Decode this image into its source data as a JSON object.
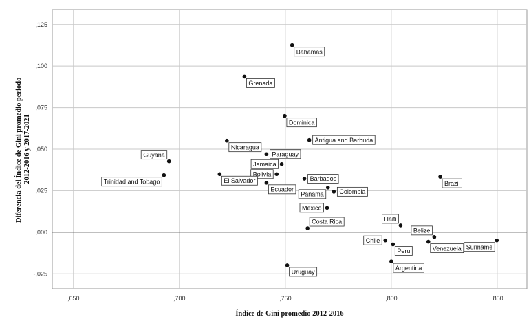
{
  "chart_data": {
    "type": "scatter",
    "xlabel": "Índice de Gini promedio 2012-2016",
    "ylabel_lines": [
      "Diferencia del Índice de Gini promedio periodo",
      "2012-2016 y 2017-2021"
    ],
    "xlim": [
      0.64,
      0.864
    ],
    "ylim": [
      -0.034,
      0.134
    ],
    "xticks": [
      {
        "value": 0.65,
        "label": ",650"
      },
      {
        "value": 0.7,
        "label": ",700"
      },
      {
        "value": 0.75,
        "label": ",750"
      },
      {
        "value": 0.8,
        "label": ",800"
      },
      {
        "value": 0.85,
        "label": ",850"
      }
    ],
    "yticks": [
      {
        "value": -0.025,
        "label": "-,025"
      },
      {
        "value": 0.0,
        "label": ",000"
      },
      {
        "value": 0.025,
        "label": ",025"
      },
      {
        "value": 0.05,
        "label": ",050"
      },
      {
        "value": 0.075,
        "label": ",075"
      },
      {
        "value": 0.1,
        "label": ",100"
      },
      {
        "value": 0.125,
        "label": ",125"
      }
    ],
    "grid": true,
    "reference_line_y": 0,
    "points": [
      {
        "name": "Bahamas",
        "x": 0.7532,
        "y": 0.1126,
        "pos": "right-below"
      },
      {
        "name": "Grenada",
        "x": 0.7307,
        "y": 0.0937,
        "pos": "right-below"
      },
      {
        "name": "Dominica",
        "x": 0.7497,
        "y": 0.07,
        "pos": "right-below"
      },
      {
        "name": "Antigua and Barbuda",
        "x": 0.7613,
        "y": 0.0555,
        "pos": "right"
      },
      {
        "name": "Nicaragua",
        "x": 0.7224,
        "y": 0.0551,
        "pos": "right-below"
      },
      {
        "name": "Guyana",
        "x": 0.6951,
        "y": 0.0427,
        "pos": "left-above"
      },
      {
        "name": "Trinidad and Tobago",
        "x": 0.6927,
        "y": 0.0344,
        "pos": "left-below"
      },
      {
        "name": "Paraguay",
        "x": 0.7411,
        "y": 0.047,
        "pos": "right"
      },
      {
        "name": "Jamaica",
        "x": 0.7483,
        "y": 0.041,
        "pos": "left"
      },
      {
        "name": "Bolivia",
        "x": 0.7459,
        "y": 0.035,
        "pos": "left"
      },
      {
        "name": "El Salvador",
        "x": 0.719,
        "y": 0.035,
        "pos": "right-below"
      },
      {
        "name": "Barbados",
        "x": 0.759,
        "y": 0.0322,
        "pos": "right"
      },
      {
        "name": "Ecuador",
        "x": 0.7411,
        "y": 0.0298,
        "pos": "right-below"
      },
      {
        "name": "Panama",
        "x": 0.7701,
        "y": 0.0269,
        "pos": "left-below"
      },
      {
        "name": "Colombia",
        "x": 0.7729,
        "y": 0.0244,
        "pos": "right"
      },
      {
        "name": "Mexico",
        "x": 0.7697,
        "y": 0.0147,
        "pos": "left"
      },
      {
        "name": "Costa Rica",
        "x": 0.7605,
        "y": 0.0024,
        "pos": "right-above"
      },
      {
        "name": "Brazil",
        "x": 0.8231,
        "y": 0.0334,
        "pos": "right-below"
      },
      {
        "name": "Haiti",
        "x": 0.8044,
        "y": 0.0041,
        "pos": "left-above"
      },
      {
        "name": "Belize",
        "x": 0.8203,
        "y": -0.0029,
        "pos": "left-above"
      },
      {
        "name": "Chile",
        "x": 0.7972,
        "y": -0.0049,
        "pos": "left"
      },
      {
        "name": "Peru",
        "x": 0.8008,
        "y": -0.0073,
        "pos": "right-below"
      },
      {
        "name": "Venezuela",
        "x": 0.8175,
        "y": -0.0057,
        "pos": "right-below"
      },
      {
        "name": "Suriname",
        "x": 0.8498,
        "y": -0.0049,
        "pos": "left-below"
      },
      {
        "name": "Argentina",
        "x": 0.8,
        "y": -0.0175,
        "pos": "right-below"
      },
      {
        "name": "Uruguay",
        "x": 0.7509,
        "y": -0.0199,
        "pos": "right-below"
      }
    ]
  }
}
